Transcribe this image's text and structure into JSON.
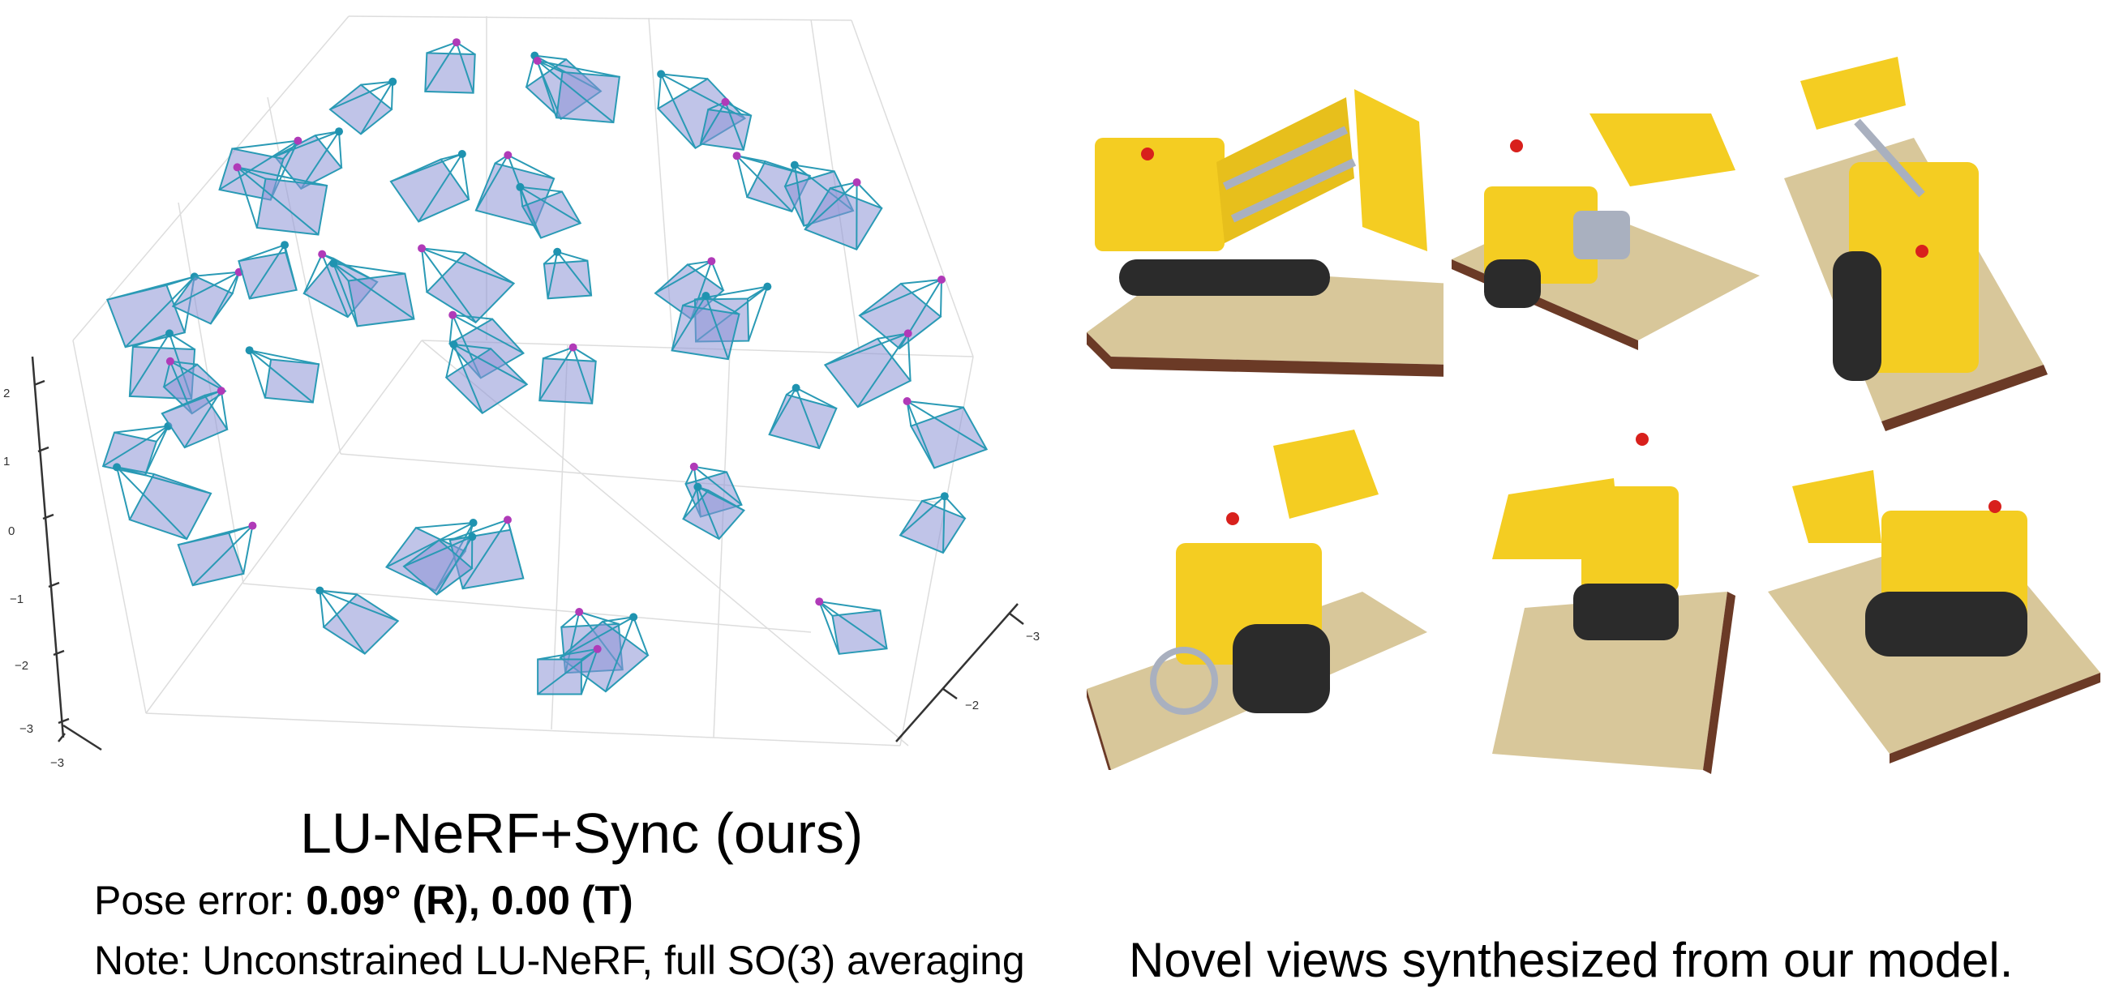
{
  "plot": {
    "z_ticks": [
      "2",
      "1",
      "0",
      "−1",
      "−2",
      "−3"
    ],
    "x_ticks": [
      "−3"
    ],
    "y_ticks": [
      "−3",
      "−2"
    ],
    "colors": {
      "frustum_edge": "#2a9ab5",
      "frustum_face": "#8d94d6",
      "cam_center": "#1f93b0",
      "cam_tip": "#b03ab8",
      "grid": "#d9d9d9"
    }
  },
  "views": {
    "count": 6,
    "subject": "yellow LEGO bulldozer",
    "colors": {
      "body": "#f4cd22",
      "base": "#d8c79a",
      "base_edge": "#6b3a26",
      "tracks": "#2b2b2b",
      "pistons": "#a9b0bf"
    }
  },
  "captions": {
    "method": "LU-NeRF+Sync (ours)",
    "pose_error_prefix": "Pose error: ",
    "pose_error_value": "0.09° (R), 0.00 (T)",
    "note": "Note: Unconstrained LU-NeRF, full SO(3) averaging",
    "novel_views": "Novel views synthesized from our model."
  }
}
